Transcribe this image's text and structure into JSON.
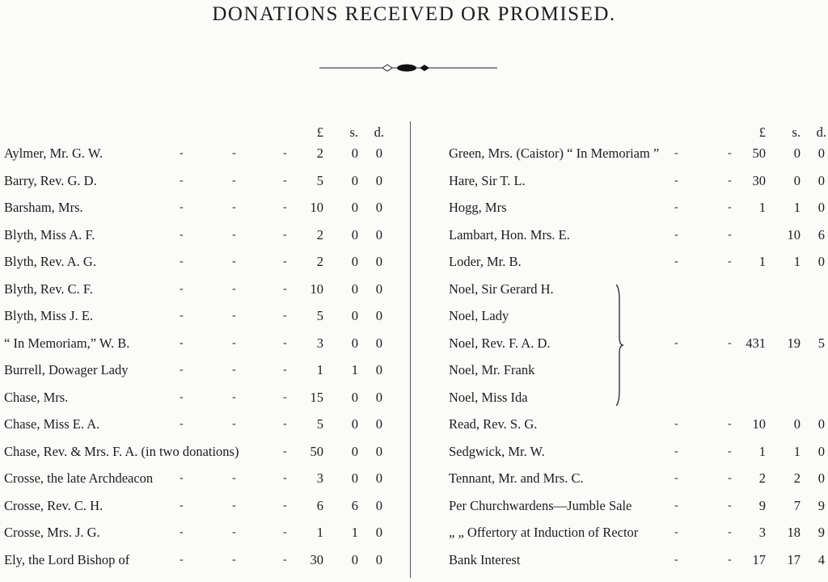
{
  "title": "DONATIONS RECEIVED OR PROMISED.",
  "headers": {
    "pounds": "£",
    "shillings": "s.",
    "pence": "d."
  },
  "left": [
    {
      "name": "Aylmer, Mr. G. W.",
      "l": "2",
      "s": "0",
      "d": "0"
    },
    {
      "name": "Barry, Rev. G. D.",
      "l": "5",
      "s": "0",
      "d": "0"
    },
    {
      "name": "Barsham, Mrs.",
      "l": "10",
      "s": "0",
      "d": "0"
    },
    {
      "name": "Blyth, Miss A. F.",
      "l": "2",
      "s": "0",
      "d": "0"
    },
    {
      "name": "Blyth, Rev. A. G.",
      "l": "2",
      "s": "0",
      "d": "0"
    },
    {
      "name": "Blyth, Rev. C. F.",
      "l": "10",
      "s": "0",
      "d": "0"
    },
    {
      "name": "Blyth, Miss J. E.",
      "l": "5",
      "s": "0",
      "d": "0"
    },
    {
      "name": "“ In Memoriam,” W. B.",
      "l": "3",
      "s": "0",
      "d": "0"
    },
    {
      "name": "Burrell, Dowager Lady",
      "l": "1",
      "s": "1",
      "d": "0"
    },
    {
      "name": "Chase, Mrs.",
      "l": "15",
      "s": "0",
      "d": "0"
    },
    {
      "name": "Chase, Miss E. A.",
      "l": "5",
      "s": "0",
      "d": "0"
    },
    {
      "name": "Chase, Rev. & Mrs. F. A. (in two donations)",
      "l": "50",
      "s": "0",
      "d": "0"
    },
    {
      "name": "Crosse, the late Archdeacon",
      "l": "3",
      "s": "0",
      "d": "0"
    },
    {
      "name": "Crosse, Rev. C. H.",
      "l": "6",
      "s": "6",
      "d": "0"
    },
    {
      "name": "Crosse, Mrs. J. G.",
      "l": "1",
      "s": "1",
      "d": "0"
    },
    {
      "name": "Ely, the Lord Bishop of",
      "l": "30",
      "s": "0",
      "d": "0"
    }
  ],
  "right": [
    {
      "name": "Green, Mrs. (Caistor) “ In Memoriam ”",
      "l": "50",
      "s": "0",
      "d": "0"
    },
    {
      "name": "Hare, Sir T. L.",
      "l": "30",
      "s": "0",
      "d": "0"
    },
    {
      "name": "Hogg, Mrs",
      "l": "1",
      "s": "1",
      "d": "0"
    },
    {
      "name": "Lambart, Hon. Mrs. E.",
      "l": "",
      "s": "10",
      "d": "6"
    },
    {
      "name": "Loder, Mr. B.",
      "l": "1",
      "s": "1",
      "d": "0"
    },
    {
      "name": "Noel, Sir Gerard H.",
      "group": true
    },
    {
      "name": "Noel, Lady",
      "group": true
    },
    {
      "name": "Noel, Rev. F. A. D.",
      "group": true,
      "l": "431",
      "s": "19",
      "d": "5"
    },
    {
      "name": "Noel, Mr. Frank",
      "group": true
    },
    {
      "name": "Noel, Miss Ida",
      "group": true
    },
    {
      "name": "Read, Rev. S. G.",
      "l": "10",
      "s": "0",
      "d": "0"
    },
    {
      "name": "Sedgwick, Mr. W.",
      "l": "1",
      "s": "1",
      "d": "0"
    },
    {
      "name": "Tennant, Mr. and Mrs. C.",
      "l": "2",
      "s": "2",
      "d": "0"
    },
    {
      "name": "Per Churchwardens—Jumble Sale",
      "l": "9",
      "s": "7",
      "d": "9"
    },
    {
      "name": "„          „   Offertory at Induction of Rector",
      "l": "3",
      "s": "18",
      "d": "9"
    },
    {
      "name": "Bank Interest",
      "l": "17",
      "s": "17",
      "d": "4"
    }
  ]
}
